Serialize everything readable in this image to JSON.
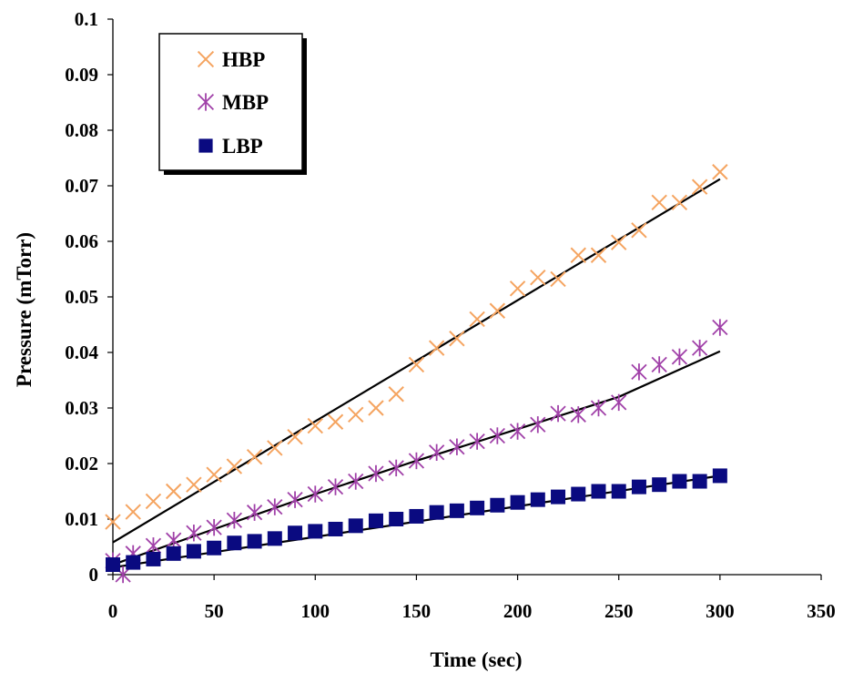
{
  "chart_data": {
    "type": "scatter",
    "xlabel": "Time (sec)",
    "ylabel": "Pressure (mTorr)",
    "xlim": [
      0,
      350
    ],
    "ylim": [
      0,
      0.1
    ],
    "x_ticks": [
      "0",
      "50",
      "100",
      "150",
      "200",
      "250",
      "300",
      "350"
    ],
    "y_ticks": [
      "0",
      "0.01",
      "0.02",
      "0.03",
      "0.04",
      "0.05",
      "0.06",
      "0.07",
      "0.08",
      "0.09",
      "0.1"
    ],
    "grid": false,
    "legend_position": "top-left",
    "series": [
      {
        "name": "HBP",
        "marker": "x",
        "color": "#F5A460",
        "x": [
          0,
          10,
          20,
          30,
          40,
          50,
          60,
          70,
          80,
          90,
          100,
          110,
          120,
          130,
          140,
          150,
          160,
          170,
          180,
          190,
          200,
          210,
          220,
          230,
          240,
          250,
          260,
          270,
          280,
          290,
          300
        ],
        "y": [
          0.0095,
          0.0113,
          0.0132,
          0.015,
          0.0162,
          0.018,
          0.0195,
          0.0212,
          0.0228,
          0.0248,
          0.0268,
          0.0275,
          0.0288,
          0.03,
          0.0325,
          0.0378,
          0.0408,
          0.0425,
          0.046,
          0.0475,
          0.0515,
          0.0535,
          0.0532,
          0.0575,
          0.0575,
          0.0598,
          0.062,
          0.067,
          0.067,
          0.0698,
          0.0725
        ],
        "fit": [
          [
            0,
            0.0058
          ],
          [
            300,
            0.0712
          ]
        ]
      },
      {
        "name": "MBP",
        "marker": "asterisk",
        "color": "#A040A8",
        "x": [
          0,
          5,
          10,
          20,
          30,
          40,
          50,
          60,
          70,
          80,
          90,
          100,
          110,
          120,
          130,
          140,
          150,
          160,
          170,
          180,
          190,
          200,
          210,
          220,
          230,
          240,
          250,
          260,
          270,
          280,
          290,
          300
        ],
        "y": [
          0.0025,
          0.0,
          0.0038,
          0.0052,
          0.0062,
          0.0075,
          0.0085,
          0.0098,
          0.0112,
          0.0122,
          0.0135,
          0.0145,
          0.0158,
          0.0168,
          0.0182,
          0.0192,
          0.0205,
          0.022,
          0.023,
          0.024,
          0.025,
          0.0258,
          0.027,
          0.029,
          0.0288,
          0.03,
          0.031,
          0.0365,
          0.0378,
          0.0392,
          0.0408,
          0.0445
        ],
        "fit": [
          [
            0,
            0.0018
          ],
          [
            50,
            0.0082
          ],
          [
            100,
            0.0145
          ],
          [
            150,
            0.0205
          ],
          [
            200,
            0.0262
          ],
          [
            250,
            0.032
          ],
          [
            300,
            0.0402
          ]
        ]
      },
      {
        "name": "LBP",
        "marker": "square",
        "color": "#0A0A80",
        "x": [
          0,
          10,
          20,
          30,
          40,
          50,
          60,
          70,
          80,
          90,
          100,
          110,
          120,
          130,
          140,
          150,
          160,
          170,
          180,
          190,
          200,
          210,
          220,
          230,
          240,
          250,
          260,
          270,
          280,
          290,
          300
        ],
        "y": [
          0.0018,
          0.0022,
          0.0028,
          0.0038,
          0.0042,
          0.0048,
          0.0057,
          0.006,
          0.0065,
          0.0075,
          0.0078,
          0.0082,
          0.0088,
          0.0097,
          0.01,
          0.0105,
          0.0112,
          0.0115,
          0.012,
          0.0125,
          0.013,
          0.0135,
          0.014,
          0.0145,
          0.015,
          0.015,
          0.0158,
          0.0162,
          0.0168,
          0.0168,
          0.0178
        ],
        "fit": [
          [
            0,
            0.0013
          ],
          [
            300,
            0.0178
          ]
        ]
      }
    ]
  }
}
